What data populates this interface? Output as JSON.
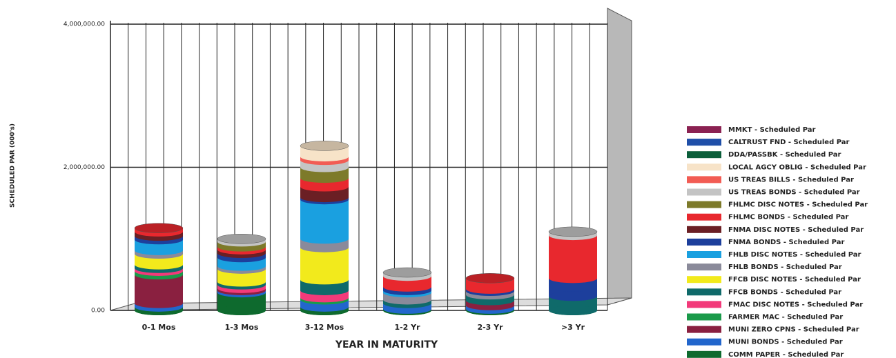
{
  "chart_data": {
    "type": "bar",
    "stacked": true,
    "y_label": "SCHEDULED PAR (000's)",
    "x_label": "YEAR IN MATURITY",
    "categories": [
      "0-1 Mos",
      "1-3 Mos",
      "3-12 Mos",
      "1-2 Yr",
      "2-3 Yr",
      ">3 Yr"
    ],
    "ylim": [
      0,
      4000000
    ],
    "yticks": [
      {
        "value": 0,
        "label": "0.00"
      },
      {
        "value": 2000000,
        "label": "2,000,000.00"
      },
      {
        "value": 4000000,
        "label": "4,000,000.00"
      }
    ],
    "grid": true,
    "series": [
      {
        "name": "MMKT - Scheduled Par",
        "color": "#8b2252",
        "values": [
          0,
          0,
          0,
          0,
          0,
          0
        ]
      },
      {
        "name": "CALTRUST FND - Scheduled Par",
        "color": "#1f4fa8",
        "values": [
          0,
          0,
          0,
          0,
          0,
          0
        ]
      },
      {
        "name": "DDA/PASSBK - Scheduled Par",
        "color": "#0b5e3a",
        "values": [
          0,
          0,
          0,
          0,
          0,
          0
        ]
      },
      {
        "name": "LOCAL AGCY OBLIG - Scheduled Par",
        "color": "#f7e3c8",
        "values": [
          0,
          0,
          150000,
          0,
          0,
          0
        ]
      },
      {
        "name": "US TREAS BILLS - Scheduled Par",
        "color": "#f25c54",
        "values": [
          0,
          0,
          50000,
          0,
          0,
          0
        ]
      },
      {
        "name": "US TREAS BONDS - Scheduled Par",
        "color": "#c4c4c4",
        "values": [
          0,
          40000,
          100000,
          50000,
          0,
          50000
        ]
      },
      {
        "name": "FHLMC DISC NOTES - Scheduled Par",
        "color": "#7d7a2a",
        "values": [
          0,
          70000,
          150000,
          0,
          0,
          0
        ]
      },
      {
        "name": "FHLMC BONDS - Scheduled Par",
        "color": "#e8282e",
        "values": [
          50000,
          40000,
          120000,
          150000,
          150000,
          600000
        ]
      },
      {
        "name": "FNMA DISC NOTES - Scheduled Par",
        "color": "#6b1f24",
        "values": [
          60000,
          50000,
          150000,
          0,
          0,
          0
        ]
      },
      {
        "name": "FNMA BONDS - Scheduled Par",
        "color": "#1d3f9c",
        "values": [
          50000,
          60000,
          30000,
          50000,
          30000,
          250000
        ]
      },
      {
        "name": "FHLB DISC NOTES - Scheduled Par",
        "color": "#1aa0e0",
        "values": [
          150000,
          120000,
          550000,
          30000,
          0,
          0
        ]
      },
      {
        "name": "FHLB BONDS - Scheduled Par",
        "color": "#8a8a9a",
        "values": [
          50000,
          40000,
          120000,
          100000,
          50000,
          0
        ]
      },
      {
        "name": "FFCB DISC NOTES - Scheduled Par",
        "color": "#f2ea1c",
        "values": [
          150000,
          180000,
          450000,
          0,
          0,
          0
        ]
      },
      {
        "name": "FFCB BONDS - Scheduled Par",
        "color": "#0f6a6a",
        "values": [
          50000,
          40000,
          150000,
          50000,
          80000,
          200000
        ]
      },
      {
        "name": "FMAC DISC NOTES - Scheduled Par",
        "color": "#f23a7a",
        "values": [
          40000,
          50000,
          100000,
          0,
          0,
          0
        ]
      },
      {
        "name": "FARMER MAC - Scheduled Par",
        "color": "#1a9a4a",
        "values": [
          50000,
          0,
          30000,
          0,
          0,
          0
        ]
      },
      {
        "name": "MUNI ZERO CPNS - Scheduled Par",
        "color": "#8a2040",
        "values": [
          400000,
          30000,
          0,
          0,
          70000,
          0
        ]
      },
      {
        "name": "MUNI BONDS - Scheduled Par",
        "color": "#2266cc",
        "values": [
          50000,
          30000,
          100000,
          80000,
          50000,
          0
        ]
      },
      {
        "name": "COMM PAPER - Scheduled Par",
        "color": "#0e6a2e",
        "values": [
          50000,
          250000,
          50000,
          20000,
          20000,
          0
        ]
      }
    ]
  }
}
